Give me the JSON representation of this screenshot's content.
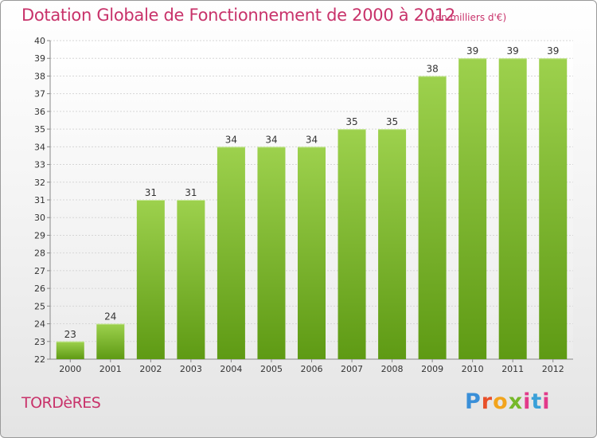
{
  "header": {
    "title": "Dotation Globale de Fonctionnement de 2000 à 2012",
    "subtitle": "(en milliers d'€)"
  },
  "footer": {
    "commune": "TORDèRES",
    "logo": "Proxiti"
  },
  "colors": {
    "title": "#c8326a",
    "bar_top": "#9dd14d",
    "bar_bottom": "#5e9a14"
  },
  "chart_data": {
    "type": "bar",
    "title": "Dotation Globale de Fonctionnement de 2000 à 2012",
    "subtitle": "(en milliers d'€)",
    "xlabel": "",
    "ylabel": "",
    "categories": [
      "2000",
      "2001",
      "2002",
      "2003",
      "2004",
      "2005",
      "2006",
      "2007",
      "2008",
      "2009",
      "2010",
      "2011",
      "2012"
    ],
    "values": [
      23,
      24,
      31,
      31,
      34,
      34,
      34,
      35,
      35,
      38,
      39,
      39,
      39
    ],
    "ylim": [
      22,
      40
    ],
    "yticks": [
      22,
      23,
      24,
      25,
      26,
      27,
      28,
      29,
      30,
      31,
      32,
      33,
      34,
      35,
      36,
      37,
      38,
      39,
      40
    ],
    "grid": true,
    "data_labels": true
  }
}
